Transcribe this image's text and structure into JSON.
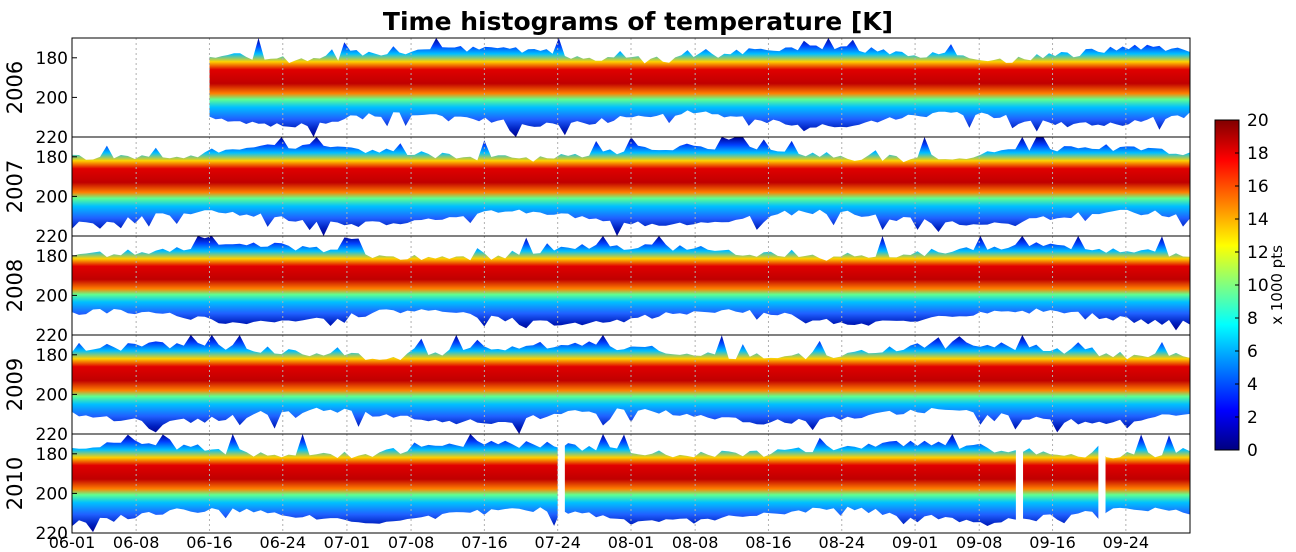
{
  "chart_data": {
    "type": "heatmap",
    "title": "Time histograms of temperature [K]",
    "panels": [
      {
        "label": "2006",
        "start_date": "06-16",
        "gaps": []
      },
      {
        "label": "2007",
        "start_date": "06-01",
        "gaps": []
      },
      {
        "label": "2008",
        "start_date": "06-01",
        "gaps": []
      },
      {
        "label": "2009",
        "start_date": "06-01",
        "gaps": []
      },
      {
        "label": "2010",
        "start_date": "06-01",
        "gaps": [
          [
            "07-24",
            "07-25"
          ],
          [
            "09-12",
            "09-13"
          ],
          [
            "09-21",
            "09-22"
          ]
        ]
      }
    ],
    "y_axis": {
      "ticks": [
        "180",
        "200",
        "220"
      ],
      "range": [
        170,
        220
      ],
      "reversed": true
    },
    "x_axis": {
      "ticks": [
        "06-01",
        "06-08",
        "06-16",
        "06-24",
        "07-01",
        "07-08",
        "07-16",
        "07-24",
        "08-01",
        "08-08",
        "08-16",
        "08-24",
        "09-01",
        "09-08",
        "09-16",
        "09-24"
      ],
      "grid": "dotted vertical lines at ticks"
    },
    "colorbar": {
      "label": "x 1000 pts",
      "ticks": [
        "20",
        "18",
        "16",
        "14",
        "12",
        "10",
        "8",
        "6",
        "4",
        "2",
        "0"
      ],
      "range": [
        0,
        20
      ],
      "colormap": "jet"
    }
  }
}
